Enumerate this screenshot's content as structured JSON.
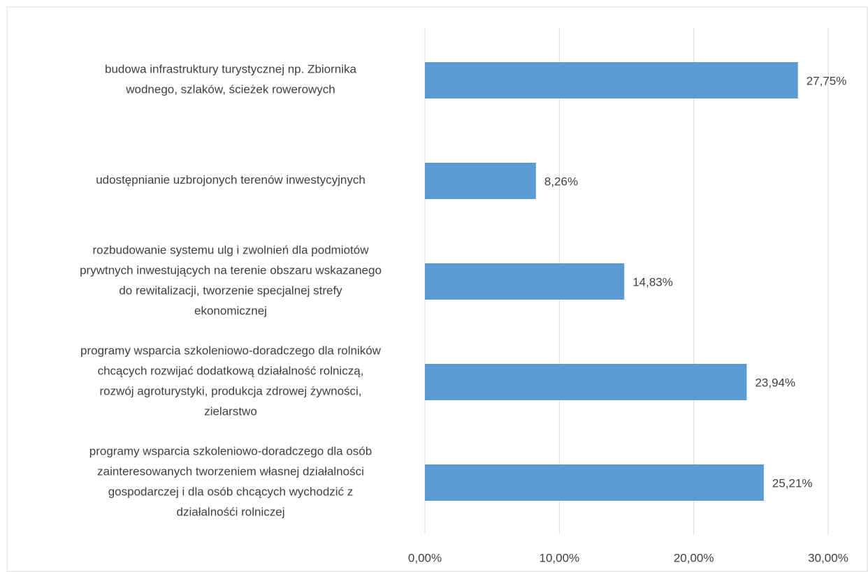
{
  "chart_data": {
    "type": "hbar",
    "categories": [
      "budowa infrastruktury turystycznej np. Zbiornika\nwodnego, szlaków, ścieżek rowerowych",
      "udostępnianie uzbrojonych terenów inwestycyjnych",
      "rozbudowanie systemu ulg i zwolnień dla podmiotów\nprywtnych inwestujących na terenie obszaru wskazanego\ndo rewitalizacji, tworzenie specjalnej strefy\nekonomicznej",
      "programy wsparcia szkoleniowo-doradczego dla rolników\nchcących rozwijać dodatkową działalność rolniczą,\nrozwój agroturystyki, produkcja zdrowej żywności,\nzielarstwo",
      "programy wsparcia szkoleniowo-doradczego dla osób\nzainteresowanych tworzeniem własnej działalności\ngospodarczej i dla osób chcących wychodzić z\ndziałalnośći rolniczej"
    ],
    "values": [
      27.75,
      8.26,
      14.83,
      23.94,
      25.21
    ],
    "value_labels": [
      "27,75%",
      "8,26%",
      "14,83%",
      "23,94%",
      "25,21%"
    ],
    "color": "#5b9bd5",
    "xlim": [
      0,
      30
    ],
    "xticks": [
      {
        "value": 0,
        "label": "0,00%"
      },
      {
        "value": 10,
        "label": "10,00%"
      },
      {
        "value": 20,
        "label": "20,00%"
      },
      {
        "value": 30,
        "label": "30,00%"
      }
    ],
    "grid": true
  }
}
